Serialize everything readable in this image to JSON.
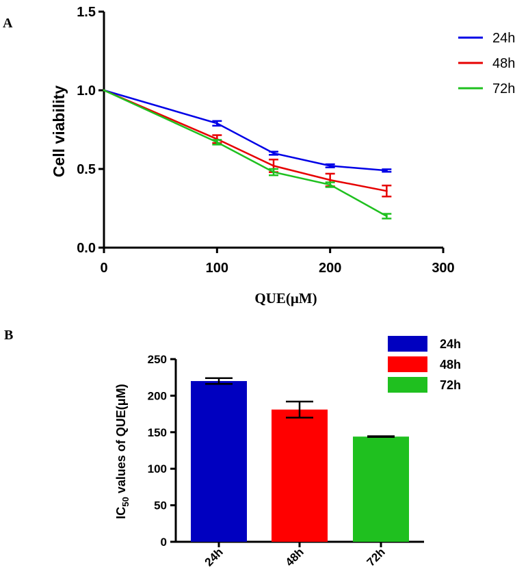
{
  "chart_data": [
    {
      "panel": "A",
      "type": "line",
      "title": "",
      "xlabel": "QUE(μM)",
      "ylabel": "Cell viability",
      "xlim": [
        0,
        300
      ],
      "ylim": [
        0,
        1.5
      ],
      "xticks": [
        "0",
        "100",
        "200",
        "300"
      ],
      "xtick_values": [
        0,
        100,
        200,
        300
      ],
      "yticks": [
        "0.0",
        "0.5",
        "1.0",
        "1.5"
      ],
      "ytick_values": [
        0,
        0.5,
        1.0,
        1.5
      ],
      "x": [
        0,
        100,
        150,
        200,
        250
      ],
      "series": [
        {
          "name": "24h",
          "color": "#0000e6",
          "values": [
            1.0,
            0.79,
            0.6,
            0.52,
            0.49
          ],
          "errors": [
            0,
            0.015,
            0.01,
            0.01,
            0.008
          ]
        },
        {
          "name": "48h",
          "color": "#e60000",
          "values": [
            1.0,
            0.69,
            0.52,
            0.43,
            0.36
          ],
          "errors": [
            0,
            0.025,
            0.04,
            0.04,
            0.035
          ]
        },
        {
          "name": "72h",
          "color": "#1fc01f",
          "values": [
            1.0,
            0.67,
            0.48,
            0.4,
            0.2
          ],
          "errors": [
            0,
            0.015,
            0.02,
            0.015,
            0.015
          ]
        }
      ],
      "legend": [
        "24h",
        "48h",
        "72h"
      ],
      "legend_position": "top-right"
    },
    {
      "panel": "B",
      "type": "bar",
      "title": "",
      "xlabel": "",
      "ylabel_prefix": "IC",
      "ylabel_sub": "50",
      "ylabel_suffix": " values of QUE(μM)",
      "ylim": [
        0,
        250
      ],
      "yticks": [
        "0",
        "50",
        "100",
        "150",
        "200",
        "250"
      ],
      "ytick_values": [
        0,
        50,
        100,
        150,
        200,
        250
      ],
      "categories": [
        "24h",
        "48h",
        "72h"
      ],
      "values": [
        220,
        181,
        144
      ],
      "errors": [
        4,
        11,
        0.5
      ],
      "colors": [
        "#0000c0",
        "#ff0000",
        "#1fc01f"
      ],
      "legend": [
        "24h",
        "48h",
        "72h"
      ],
      "legend_position": "top-right"
    }
  ]
}
